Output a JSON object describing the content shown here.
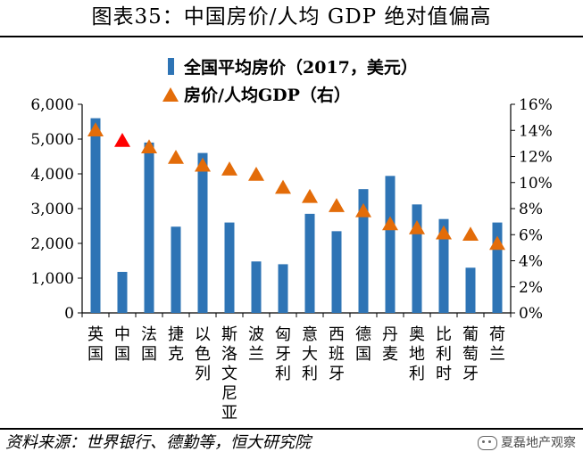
{
  "figure": {
    "title": "图表35：中国房价/人均 GDP 绝对值偏高",
    "source": "资料来源：世界银行、德勤等，恒大研究院",
    "watermark": "夏磊地产观察"
  },
  "chart_data": {
    "type": "bar",
    "categories": [
      "英国",
      "中国",
      "法国",
      "捷克",
      "以色列",
      "斯洛文尼亚",
      "波兰",
      "匈牙利",
      "意大利",
      "西班牙",
      "德国",
      "丹麦",
      "奥地利",
      "比利时",
      "葡萄牙",
      "荷兰"
    ],
    "series": [
      {
        "name": "全国平均房价（2017，美元）",
        "type": "bar",
        "axis": "left",
        "color": "#2e74b5",
        "values": [
          5600,
          1180,
          4900,
          2480,
          4600,
          2600,
          1480,
          1400,
          2850,
          2350,
          3560,
          3940,
          3120,
          2700,
          1300,
          2600
        ]
      },
      {
        "name": "房价/人均GDP（右）",
        "type": "marker",
        "axis": "right",
        "color": "#e36c09",
        "highlight_color": "#ff0000",
        "highlight_index": 1,
        "values": [
          14.0,
          13.2,
          12.7,
          11.9,
          11.3,
          11.0,
          10.6,
          9.6,
          8.9,
          8.2,
          7.8,
          6.8,
          6.5,
          6.1,
          6.0,
          5.3
        ]
      }
    ],
    "y_left": {
      "min": 0,
      "max": 6000,
      "ticks": [
        "0",
        "1,000",
        "2,000",
        "3,000",
        "4,000",
        "5,000",
        "6,000"
      ]
    },
    "y_right": {
      "min": 0,
      "max": 16,
      "ticks": [
        "0%",
        "2%",
        "4%",
        "6%",
        "8%",
        "10%",
        "12%",
        "14%",
        "16%"
      ]
    },
    "legend": "top-center"
  }
}
